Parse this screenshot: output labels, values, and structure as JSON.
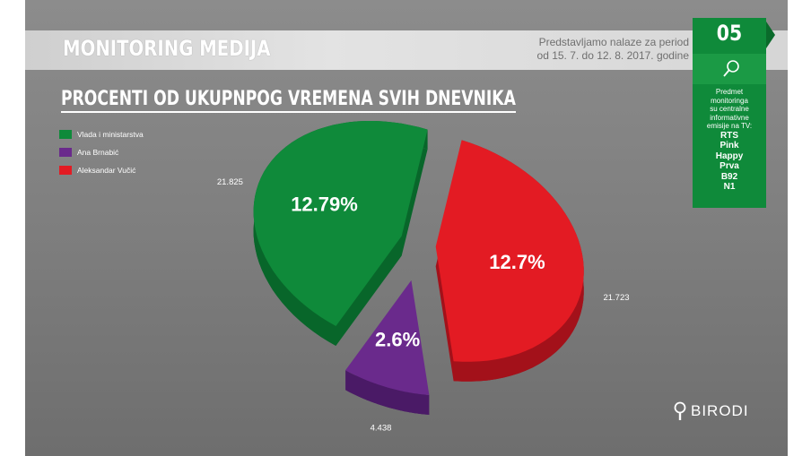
{
  "header": {
    "title": "MONITORING MEDIJA",
    "period_line1": "Predstavljamo nalaze za period",
    "period_line2": "od 15. 7. do 12. 8. 2017. godine"
  },
  "badge": {
    "number": "05",
    "icon": "magnifier-icon",
    "caption": [
      "Predmet",
      "monitoringa",
      "su centralne",
      "informativne",
      "emisije na TV:"
    ],
    "channels": [
      "RTS",
      "Pink",
      "Happy",
      "Prva",
      "B92",
      "N1"
    ]
  },
  "section_title": "PROCENTI OD UKUPNPOG VREMENA SVIH DNEVNIKA",
  "logo": {
    "text": "BIRODI",
    "icon": "magnifier-icon"
  },
  "colors": {
    "green": "#0f8a3a",
    "purple": "#6a2a8c",
    "red": "#e31b23",
    "background": "#808080"
  },
  "chart_data": {
    "type": "pie",
    "title": "",
    "categories": [
      "Vlada i ministarstva",
      "Ana Brnabić",
      "Aleksandar Vučić"
    ],
    "values": [
      21.825,
      4.438,
      21.723
    ],
    "percent_labels": [
      "12.79%",
      "2.6%",
      "12.7%"
    ],
    "value_labels": [
      "21.825",
      "4.438",
      "21.723"
    ],
    "legend_position": "top-left",
    "style": "3d-exploded"
  }
}
